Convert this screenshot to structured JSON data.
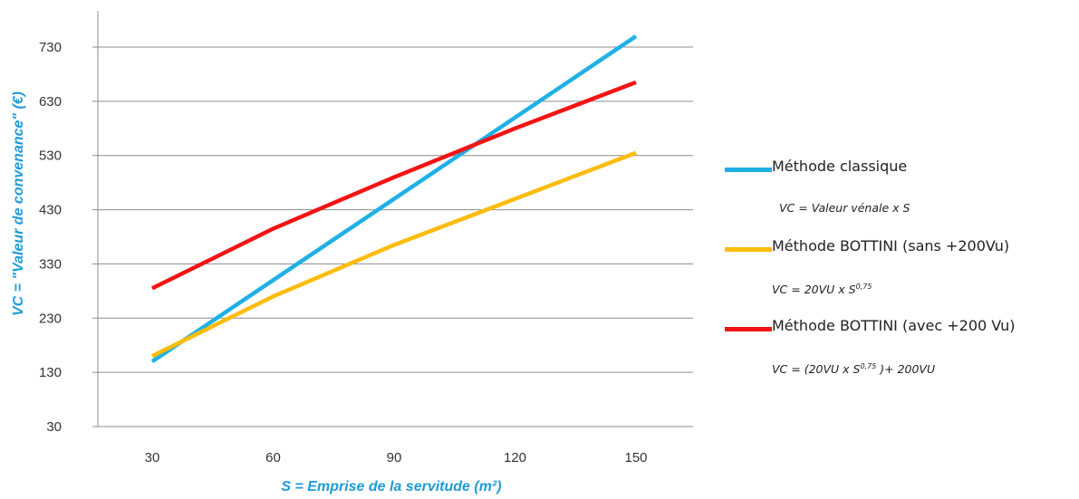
{
  "chart_data": {
    "type": "line",
    "title": "",
    "xlabel": "S = Emprise de la servitude (m²)",
    "ylabel": "VC = \"Valeur de convenance\" (€)",
    "categories": [
      "30",
      "60",
      "90",
      "120",
      "150"
    ],
    "x": [
      30,
      60,
      90,
      120,
      150
    ],
    "ylim": [
      30,
      730
    ],
    "yticks": [
      "30",
      "130",
      "230",
      "330",
      "430",
      "530",
      "630",
      "730"
    ],
    "grid": true,
    "legend_position": "right",
    "series": [
      {
        "name": "Méthode classique",
        "color": "#1fb0e5",
        "values": [
          150,
          300,
          450,
          600,
          750
        ],
        "formula": {
          "pre": "VC = Valeur vénale x S",
          "sup": "",
          "post": ""
        }
      },
      {
        "name": "Méthode BOTTINI (sans +200Vu)",
        "color": "#fcbc0a",
        "values": [
          160,
          270,
          365,
          450,
          535
        ],
        "formula": {
          "pre": "VC = 20VU x S",
          "sup": "0,75",
          "post": ""
        }
      },
      {
        "name": "Méthode BOTTINI (avec +200 Vu)",
        "color": "#f21414",
        "values": [
          285,
          395,
          490,
          580,
          665
        ],
        "formula": {
          "pre": "VC = (20VU x S",
          "sup": "0,75",
          "post": " )+ 200VU"
        }
      }
    ]
  }
}
